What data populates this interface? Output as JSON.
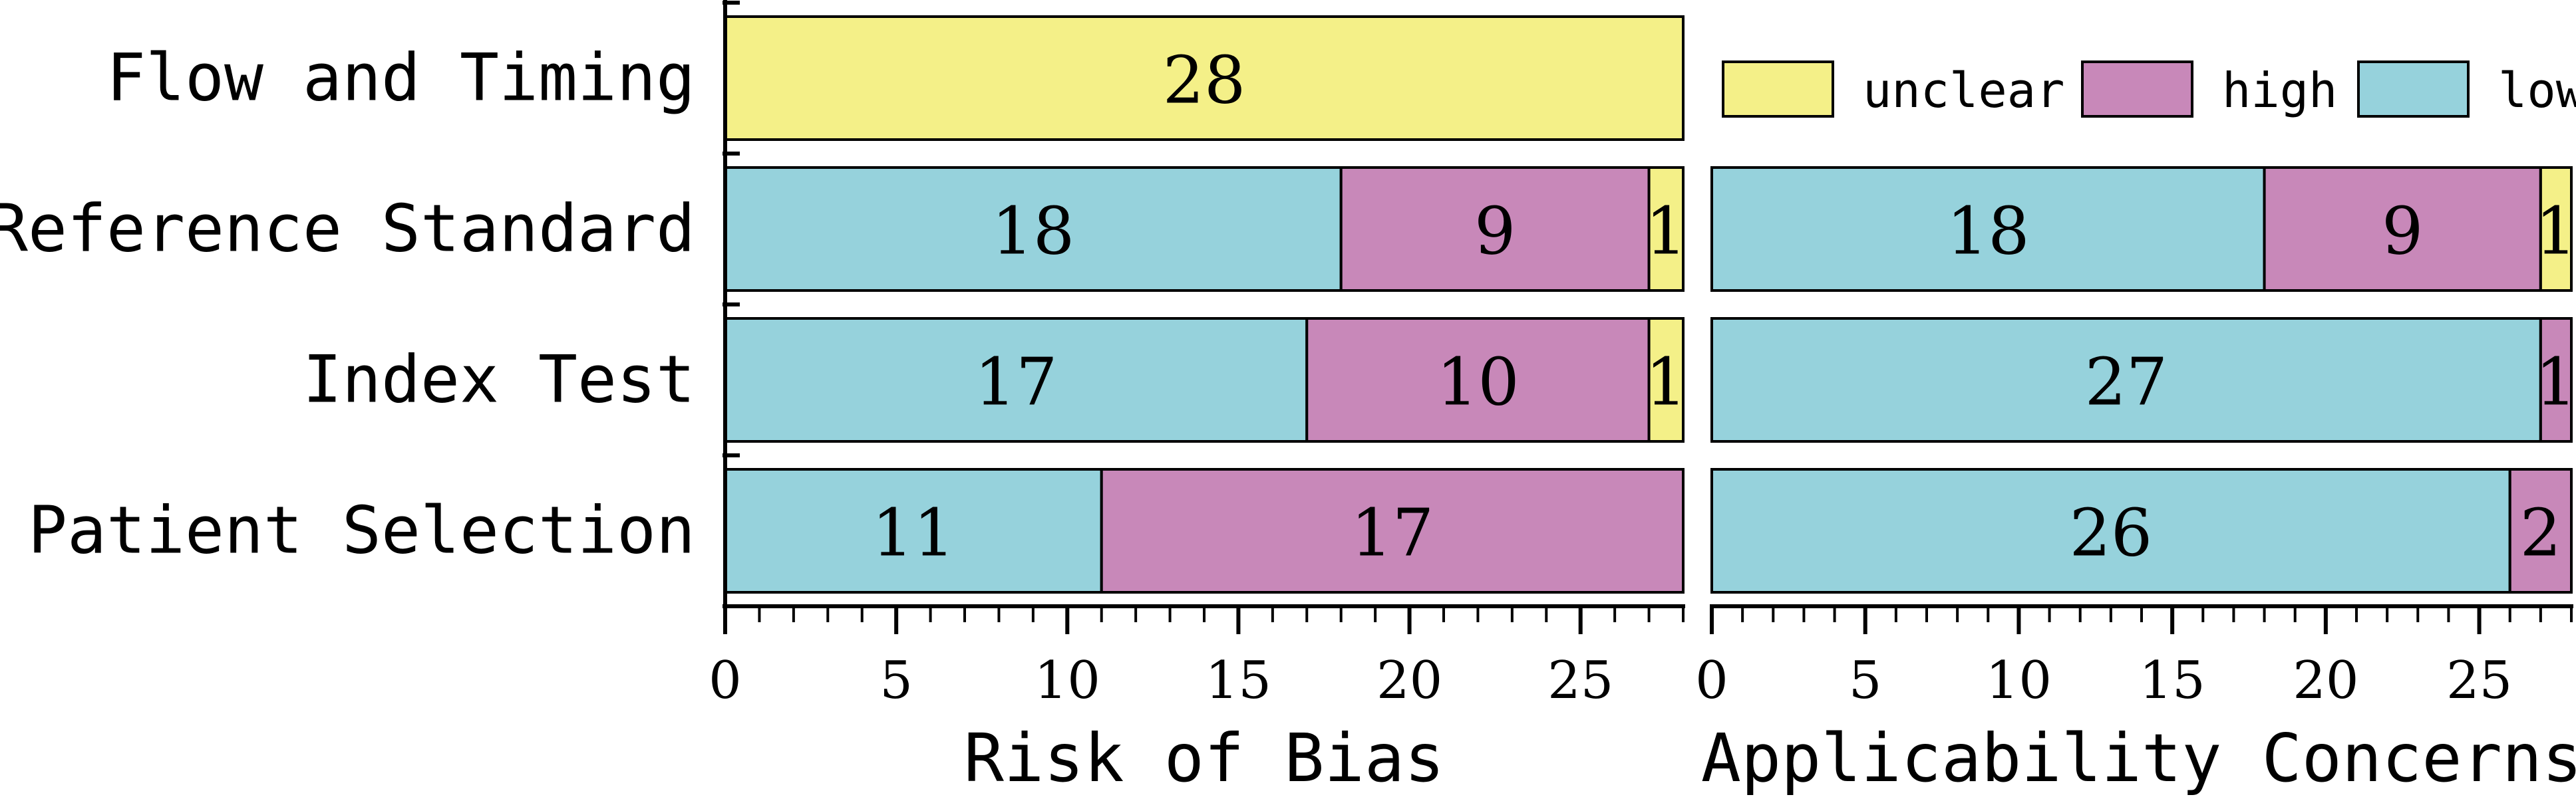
{
  "chart_data": {
    "type": "bar",
    "orientation": "horizontal",
    "stacked": true,
    "categories": [
      "Flow and Timing",
      "Reference Standard",
      "Index Test",
      "Patient Selection"
    ],
    "colors": {
      "low": "#96d2dc",
      "high": "#c888b9",
      "unclear": "#f4f088"
    },
    "legend": {
      "placement": "top-right",
      "items": [
        {
          "key": "unclear",
          "label": "unclear"
        },
        {
          "key": "high",
          "label": "high"
        },
        {
          "key": "low",
          "label": "low"
        }
      ]
    },
    "panels": [
      {
        "id": "risk-of-bias",
        "xlabel": "Risk of Bias",
        "xlim": [
          0,
          28
        ],
        "ticks": [
          0,
          5,
          10,
          15,
          20,
          25
        ],
        "series": [
          {
            "name": "low",
            "values": [
              0,
              18,
              17,
              11
            ]
          },
          {
            "name": "high",
            "values": [
              0,
              9,
              10,
              17
            ]
          },
          {
            "name": "unclear",
            "values": [
              28,
              1,
              1,
              0
            ]
          }
        ]
      },
      {
        "id": "applicability-concerns",
        "xlabel": "Applicability Concerns",
        "xlim": [
          0,
          28
        ],
        "ticks": [
          0,
          5,
          10,
          15,
          20,
          25
        ],
        "series": [
          {
            "name": "low",
            "values": [
              null,
              18,
              27,
              26
            ]
          },
          {
            "name": "high",
            "values": [
              null,
              9,
              1,
              2
            ]
          },
          {
            "name": "unclear",
            "values": [
              null,
              1,
              0,
              0
            ]
          }
        ]
      }
    ]
  }
}
